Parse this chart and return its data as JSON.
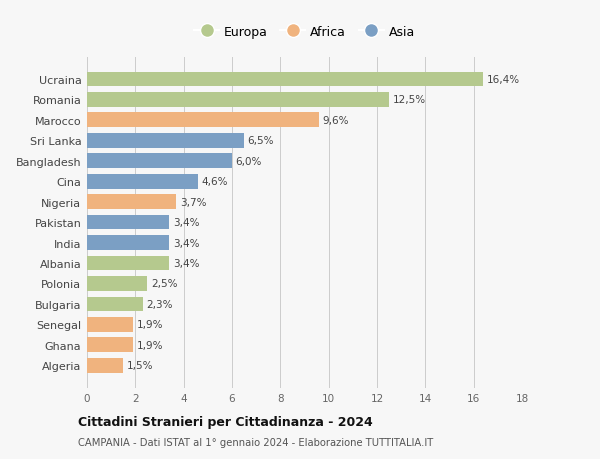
{
  "categories": [
    "Ucraina",
    "Romania",
    "Marocco",
    "Sri Lanka",
    "Bangladesh",
    "Cina",
    "Nigeria",
    "Pakistan",
    "India",
    "Albania",
    "Polonia",
    "Bulgaria",
    "Senegal",
    "Ghana",
    "Algeria"
  ],
  "values": [
    16.4,
    12.5,
    9.6,
    6.5,
    6.0,
    4.6,
    3.7,
    3.4,
    3.4,
    3.4,
    2.5,
    2.3,
    1.9,
    1.9,
    1.5
  ],
  "labels": [
    "16,4%",
    "12,5%",
    "9,6%",
    "6,5%",
    "6,0%",
    "4,6%",
    "3,7%",
    "3,4%",
    "3,4%",
    "3,4%",
    "2,5%",
    "2,3%",
    "1,9%",
    "1,9%",
    "1,5%"
  ],
  "continents": [
    "Europa",
    "Europa",
    "Africa",
    "Asia",
    "Asia",
    "Asia",
    "Africa",
    "Asia",
    "Asia",
    "Europa",
    "Europa",
    "Europa",
    "Africa",
    "Africa",
    "Africa"
  ],
  "colors": {
    "Europa": "#b5c98e",
    "Africa": "#f0b37e",
    "Asia": "#7b9fc4"
  },
  "xlim": [
    0,
    18
  ],
  "xticks": [
    0,
    2,
    4,
    6,
    8,
    10,
    12,
    14,
    16,
    18
  ],
  "title": "Cittadini Stranieri per Cittadinanza - 2024",
  "subtitle": "CAMPANIA - Dati ISTAT al 1° gennaio 2024 - Elaborazione TUTTITALIA.IT",
  "background_color": "#f7f7f7",
  "grid_color": "#cccccc",
  "bar_height": 0.72
}
